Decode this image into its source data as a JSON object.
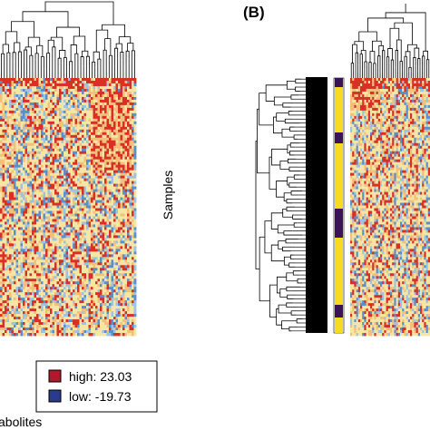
{
  "figure": {
    "panel_b_label": "(B)",
    "samples_label": "Samples",
    "metabolites_label": "abolites"
  },
  "legend": {
    "high_label": "high: 23.03",
    "low_label": "low: -19.73",
    "high_color": "#b2182b",
    "low_color": "#2b3a8c"
  },
  "colors": {
    "cold": "#5b8fc9",
    "cool": "#9ec3e0",
    "neutral": "#f6e6a6",
    "warm": "#f1c07a",
    "hot": "#d73027",
    "annotation_yellow": "#f5dc1e",
    "annotation_purple": "#3b1457"
  },
  "chart_data": [
    {
      "type": "heatmap",
      "panel": "A",
      "ylabel": "Samples",
      "xlabel": "Metabolites (truncated)",
      "color_scale": {
        "high": 23.03,
        "low": -19.73
      },
      "dendrograms": [
        "columns"
      ]
    },
    {
      "type": "heatmap",
      "panel": "B",
      "title": "(B)",
      "dendrograms": [
        "rows",
        "columns"
      ],
      "row_annotation": [
        "purple",
        "yellow",
        "purple",
        "yellow",
        "purple",
        "yellow",
        "purple",
        "yellow"
      ]
    }
  ]
}
